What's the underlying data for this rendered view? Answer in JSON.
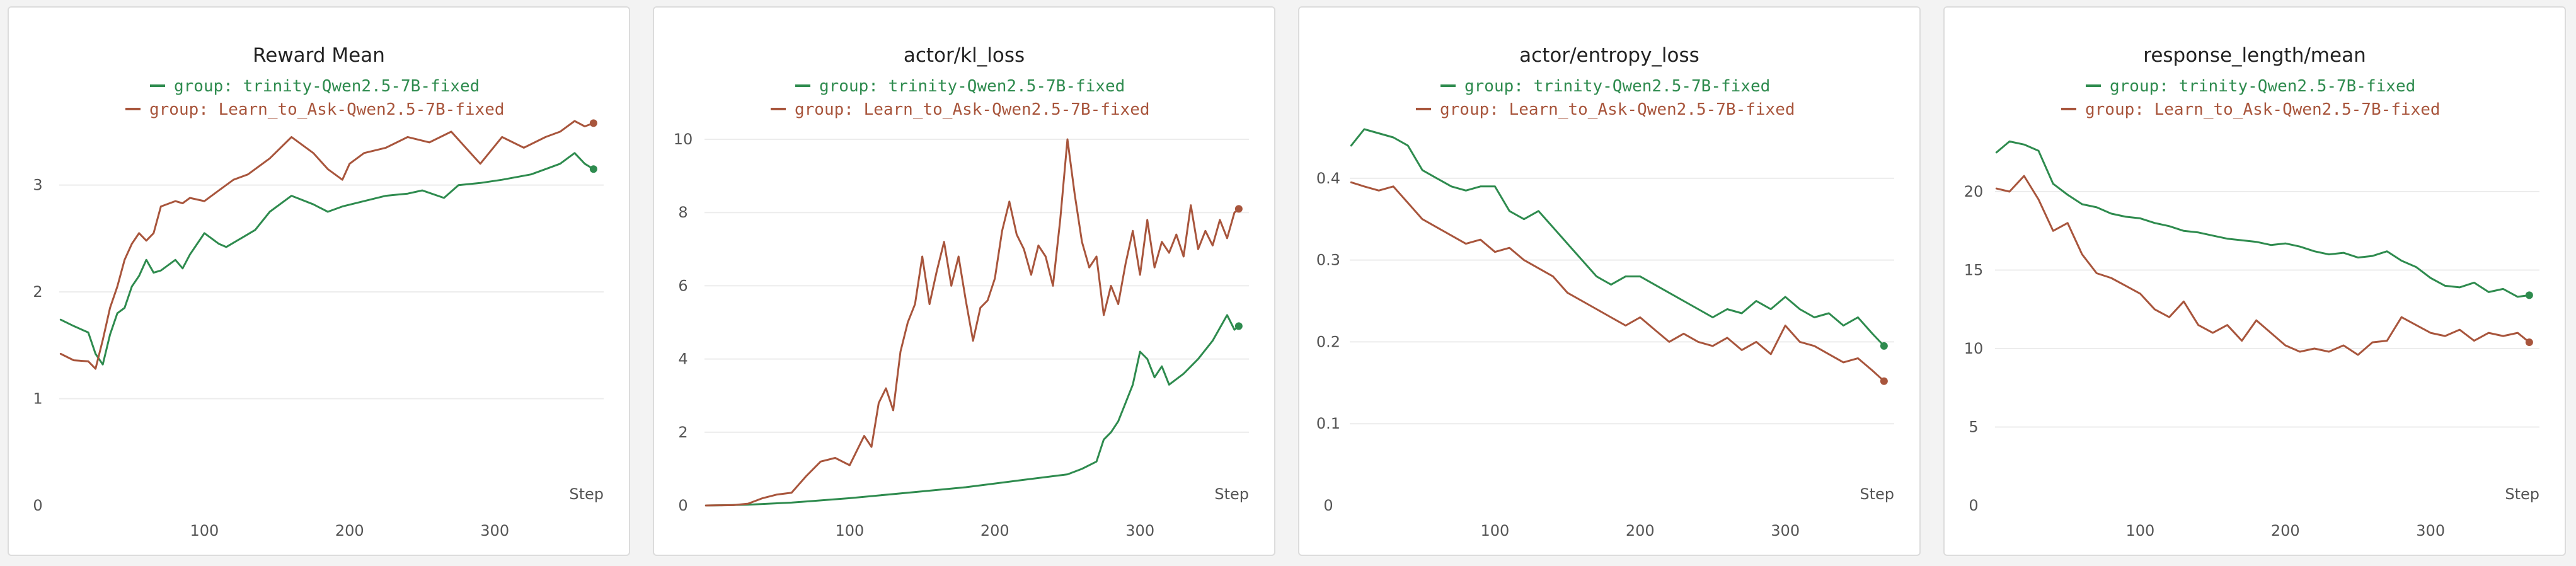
{
  "colors": {
    "trinity": "#2e8b4e",
    "learn_to_ask": "#a8553c"
  },
  "chart_data": [
    {
      "type": "line",
      "title": "Reward Mean",
      "xlabel": "Step",
      "xlim": [
        0,
        375
      ],
      "ylim": [
        0,
        3.6
      ],
      "x_ticks": [
        100,
        200,
        300
      ],
      "y_ticks": [
        0,
        1,
        2,
        3
      ],
      "legend_position": "top",
      "series": [
        {
          "name": "group: trinity-Qwen2.5-7B-fixed",
          "color": "#2e8b4e",
          "x": [
            1,
            10,
            20,
            25,
            30,
            35,
            40,
            45,
            50,
            55,
            60,
            65,
            70,
            80,
            85,
            90,
            95,
            100,
            110,
            115,
            125,
            135,
            145,
            160,
            175,
            185,
            195,
            210,
            225,
            240,
            250,
            265,
            275,
            290,
            305,
            325,
            335,
            345,
            355,
            362,
            368
          ],
          "y": [
            1.74,
            1.68,
            1.62,
            1.42,
            1.32,
            1.6,
            1.8,
            1.85,
            2.05,
            2.15,
            2.3,
            2.18,
            2.2,
            2.3,
            2.22,
            2.35,
            2.45,
            2.55,
            2.45,
            2.42,
            2.5,
            2.58,
            2.75,
            2.9,
            2.82,
            2.75,
            2.8,
            2.85,
            2.9,
            2.92,
            2.95,
            2.88,
            3.0,
            3.02,
            3.05,
            3.1,
            3.15,
            3.2,
            3.3,
            3.2,
            3.15
          ]
        },
        {
          "name": "group: Learn_to_Ask-Qwen2.5-7B-fixed",
          "color": "#a8553c",
          "x": [
            1,
            10,
            20,
            25,
            30,
            35,
            40,
            45,
            50,
            55,
            60,
            65,
            70,
            80,
            85,
            90,
            100,
            110,
            120,
            130,
            145,
            160,
            175,
            185,
            195,
            200,
            210,
            225,
            240,
            255,
            270,
            280,
            290,
            305,
            320,
            335,
            345,
            355,
            362,
            368
          ],
          "y": [
            1.42,
            1.36,
            1.35,
            1.28,
            1.55,
            1.85,
            2.05,
            2.3,
            2.45,
            2.55,
            2.48,
            2.55,
            2.8,
            2.85,
            2.83,
            2.88,
            2.85,
            2.95,
            3.05,
            3.1,
            3.25,
            3.45,
            3.3,
            3.15,
            3.05,
            3.2,
            3.3,
            3.35,
            3.45,
            3.4,
            3.5,
            3.35,
            3.2,
            3.45,
            3.35,
            3.45,
            3.5,
            3.6,
            3.55,
            3.58
          ]
        }
      ]
    },
    {
      "type": "line",
      "title": "actor/kl_loss",
      "xlabel": "Step",
      "xlim": [
        0,
        375
      ],
      "ylim": [
        0,
        10.5
      ],
      "x_ticks": [
        100,
        200,
        300
      ],
      "y_ticks": [
        0,
        2,
        4,
        6,
        8,
        10
      ],
      "legend_position": "top",
      "series": [
        {
          "name": "group: trinity-Qwen2.5-7B-fixed",
          "color": "#2e8b4e",
          "x": [
            1,
            30,
            60,
            100,
            140,
            180,
            220,
            250,
            260,
            270,
            275,
            280,
            285,
            290,
            295,
            300,
            305,
            310,
            315,
            320,
            330,
            340,
            350,
            360,
            365,
            368
          ],
          "y": [
            0.0,
            0.02,
            0.08,
            0.2,
            0.35,
            0.5,
            0.7,
            0.85,
            1.0,
            1.2,
            1.8,
            2.0,
            2.3,
            2.8,
            3.3,
            4.2,
            4.0,
            3.5,
            3.8,
            3.3,
            3.6,
            4.0,
            4.5,
            5.2,
            4.8,
            4.9
          ]
        },
        {
          "name": "group: Learn_to_Ask-Qwen2.5-7B-fixed",
          "color": "#a8553c",
          "x": [
            1,
            20,
            30,
            40,
            50,
            60,
            70,
            80,
            90,
            100,
            110,
            115,
            120,
            125,
            130,
            135,
            140,
            145,
            150,
            155,
            160,
            165,
            170,
            175,
            180,
            185,
            190,
            195,
            200,
            205,
            210,
            215,
            220,
            225,
            230,
            235,
            240,
            245,
            250,
            255,
            260,
            265,
            270,
            275,
            280,
            285,
            290,
            295,
            300,
            305,
            310,
            315,
            320,
            325,
            330,
            335,
            340,
            345,
            350,
            355,
            360,
            365,
            368
          ],
          "y": [
            0.0,
            0.01,
            0.05,
            0.2,
            0.3,
            0.35,
            0.8,
            1.2,
            1.3,
            1.1,
            1.9,
            1.6,
            2.8,
            3.2,
            2.6,
            4.2,
            5.0,
            5.5,
            6.8,
            5.5,
            6.4,
            7.2,
            6.0,
            6.8,
            5.6,
            4.5,
            5.4,
            5.6,
            6.2,
            7.5,
            8.3,
            7.4,
            7.0,
            6.3,
            7.1,
            6.8,
            6.0,
            7.8,
            10.0,
            8.5,
            7.2,
            6.5,
            6.8,
            5.2,
            6.0,
            5.5,
            6.6,
            7.5,
            6.3,
            7.8,
            6.5,
            7.2,
            6.9,
            7.4,
            6.8,
            8.2,
            7.0,
            7.5,
            7.1,
            7.8,
            7.3,
            8.0,
            8.1
          ]
        }
      ]
    },
    {
      "type": "line",
      "title": "actor/entropy_loss",
      "xlabel": "Step",
      "xlim": [
        0,
        375
      ],
      "ylim": [
        0,
        0.47
      ],
      "x_ticks": [
        100,
        200,
        300
      ],
      "y_ticks": [
        0,
        0.1,
        0.2,
        0.3,
        0.4
      ],
      "legend_position": "top",
      "series": [
        {
          "name": "group: trinity-Qwen2.5-7B-fixed",
          "color": "#2e8b4e",
          "x": [
            1,
            10,
            20,
            30,
            40,
            50,
            60,
            70,
            80,
            90,
            100,
            110,
            120,
            130,
            140,
            150,
            160,
            170,
            180,
            190,
            200,
            210,
            220,
            230,
            240,
            250,
            260,
            270,
            280,
            290,
            300,
            310,
            320,
            330,
            340,
            350,
            360,
            368
          ],
          "y": [
            0.44,
            0.46,
            0.455,
            0.45,
            0.44,
            0.41,
            0.4,
            0.39,
            0.385,
            0.39,
            0.39,
            0.36,
            0.35,
            0.36,
            0.34,
            0.32,
            0.3,
            0.28,
            0.27,
            0.28,
            0.28,
            0.27,
            0.26,
            0.25,
            0.24,
            0.23,
            0.24,
            0.235,
            0.25,
            0.24,
            0.255,
            0.24,
            0.23,
            0.235,
            0.22,
            0.23,
            0.21,
            0.195
          ]
        },
        {
          "name": "group: Learn_to_Ask-Qwen2.5-7B-fixed",
          "color": "#a8553c",
          "x": [
            1,
            10,
            20,
            30,
            40,
            50,
            60,
            70,
            80,
            90,
            100,
            110,
            120,
            130,
            140,
            150,
            160,
            170,
            180,
            190,
            200,
            210,
            220,
            230,
            240,
            250,
            260,
            270,
            280,
            290,
            300,
            310,
            320,
            330,
            340,
            350,
            360,
            368
          ],
          "y": [
            0.395,
            0.39,
            0.385,
            0.39,
            0.37,
            0.35,
            0.34,
            0.33,
            0.32,
            0.325,
            0.31,
            0.315,
            0.3,
            0.29,
            0.28,
            0.26,
            0.25,
            0.24,
            0.23,
            0.22,
            0.23,
            0.215,
            0.2,
            0.21,
            0.2,
            0.195,
            0.205,
            0.19,
            0.2,
            0.185,
            0.22,
            0.2,
            0.195,
            0.185,
            0.175,
            0.18,
            0.165,
            0.152
          ]
        }
      ]
    },
    {
      "type": "line",
      "title": "response_length/mean",
      "xlabel": "Step",
      "xlim": [
        0,
        375
      ],
      "ylim": [
        0,
        24.5
      ],
      "x_ticks": [
        100,
        200,
        300
      ],
      "y_ticks": [
        0,
        5,
        10,
        15,
        20
      ],
      "legend_position": "top",
      "series": [
        {
          "name": "group: trinity-Qwen2.5-7B-fixed",
          "color": "#2e8b4e",
          "x": [
            1,
            10,
            20,
            30,
            40,
            50,
            60,
            70,
            80,
            90,
            100,
            110,
            120,
            130,
            140,
            150,
            160,
            170,
            180,
            190,
            200,
            210,
            220,
            230,
            240,
            250,
            260,
            270,
            280,
            290,
            300,
            310,
            320,
            330,
            340,
            350,
            360,
            368
          ],
          "y": [
            22.5,
            23.2,
            23.0,
            22.6,
            20.5,
            19.8,
            19.2,
            19.0,
            18.6,
            18.4,
            18.3,
            18.0,
            17.8,
            17.5,
            17.4,
            17.2,
            17.0,
            16.9,
            16.8,
            16.6,
            16.7,
            16.5,
            16.2,
            16.0,
            16.1,
            15.8,
            15.9,
            16.2,
            15.6,
            15.2,
            14.5,
            14.0,
            13.9,
            14.2,
            13.6,
            13.8,
            13.3,
            13.4
          ]
        },
        {
          "name": "group: Learn_to_Ask-Qwen2.5-7B-fixed",
          "color": "#a8553c",
          "x": [
            1,
            10,
            20,
            30,
            40,
            50,
            60,
            70,
            80,
            90,
            100,
            110,
            120,
            130,
            140,
            150,
            160,
            170,
            180,
            190,
            200,
            210,
            220,
            230,
            240,
            250,
            260,
            270,
            280,
            290,
            300,
            310,
            320,
            330,
            340,
            350,
            360,
            368
          ],
          "y": [
            20.2,
            20.0,
            21.0,
            19.5,
            17.5,
            18.0,
            16.0,
            14.8,
            14.5,
            14.0,
            13.5,
            12.5,
            12.0,
            13.0,
            11.5,
            11.0,
            11.5,
            10.5,
            11.8,
            11.0,
            10.2,
            9.8,
            10.0,
            9.8,
            10.2,
            9.6,
            10.4,
            10.5,
            12.0,
            11.5,
            11.0,
            10.8,
            11.2,
            10.5,
            11.0,
            10.8,
            11.0,
            10.4
          ]
        }
      ]
    }
  ]
}
